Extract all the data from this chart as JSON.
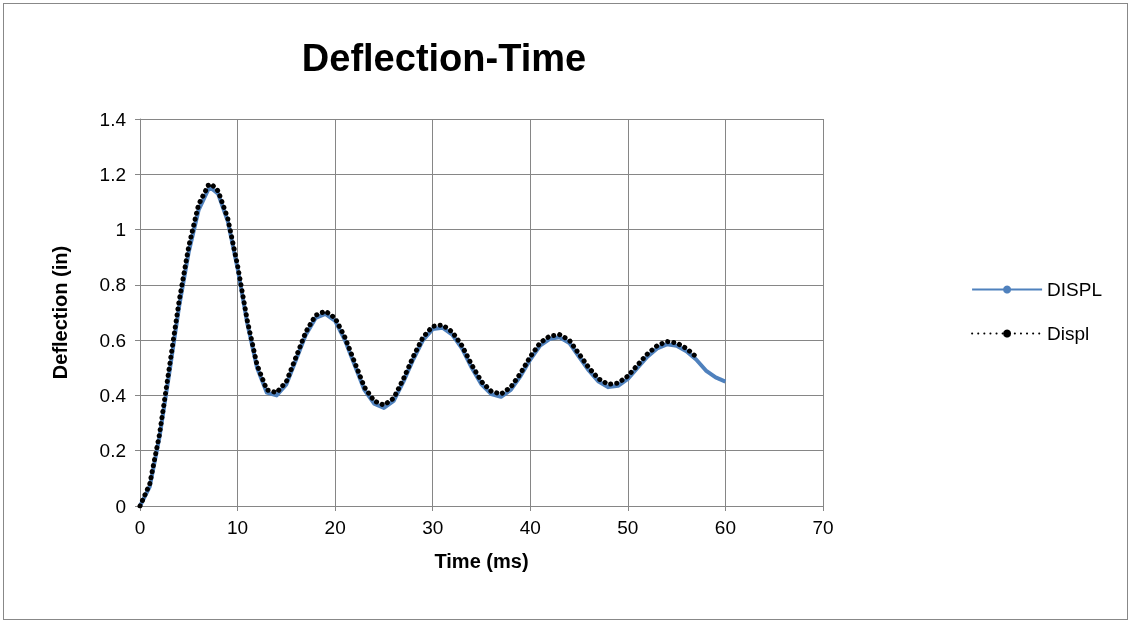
{
  "chart_data": {
    "type": "line",
    "title": "Deflection-Time",
    "xlabel": "Time (ms)",
    "ylabel": "Deflection (in)",
    "xlim": [
      0,
      70
    ],
    "xticks": [
      0,
      10,
      20,
      30,
      40,
      50,
      60,
      70
    ],
    "ylim": [
      0,
      1.4
    ],
    "yticks": [
      0,
      0.2,
      0.4,
      0.6,
      0.8,
      1,
      1.2,
      1.4
    ],
    "grid": true,
    "legend": "right",
    "marker": "none",
    "series": [
      {
        "name": "DISPL",
        "color": "#4f81bd",
        "line_style": "solid",
        "x": [
          0,
          1,
          2,
          3,
          4,
          5,
          6,
          7,
          7.3,
          8,
          9,
          10,
          11,
          12,
          13,
          14,
          15,
          16,
          17,
          18,
          19,
          20,
          21,
          22,
          23,
          24,
          25,
          26,
          27,
          28,
          29,
          30,
          31,
          32,
          33,
          34,
          35,
          36,
          37,
          38,
          39,
          40,
          41,
          42,
          43,
          44,
          45,
          46,
          47,
          48,
          49,
          50,
          51,
          52,
          53,
          54,
          55,
          56,
          57,
          58,
          59,
          60
        ],
        "values": [
          0,
          0.07,
          0.25,
          0.48,
          0.72,
          0.92,
          1.07,
          1.145,
          1.15,
          1.13,
          1.03,
          0.86,
          0.66,
          0.5,
          0.41,
          0.4,
          0.44,
          0.53,
          0.62,
          0.68,
          0.695,
          0.67,
          0.6,
          0.51,
          0.42,
          0.37,
          0.355,
          0.38,
          0.45,
          0.53,
          0.6,
          0.64,
          0.645,
          0.62,
          0.57,
          0.5,
          0.44,
          0.405,
          0.395,
          0.42,
          0.47,
          0.53,
          0.58,
          0.605,
          0.61,
          0.59,
          0.54,
          0.49,
          0.45,
          0.43,
          0.435,
          0.46,
          0.5,
          0.54,
          0.57,
          0.585,
          0.58,
          0.56,
          0.53,
          0.49,
          0.465,
          0.45
        ]
      },
      {
        "name": "Displ",
        "color": "#000000",
        "line_style": "dotted",
        "x": [
          0,
          1,
          2,
          3,
          4,
          5,
          6,
          7,
          7.3,
          8,
          9,
          10,
          11,
          12,
          13,
          14,
          15,
          16,
          17,
          18,
          19,
          20,
          21,
          22,
          23,
          24,
          25,
          26,
          27,
          28,
          29,
          30,
          31,
          32,
          33,
          34,
          35,
          36,
          37,
          38,
          39,
          40,
          41,
          42,
          43,
          44,
          45,
          46,
          47,
          48,
          49,
          50,
          51,
          52,
          53,
          54,
          55,
          56,
          57
        ],
        "values": [
          0,
          0.08,
          0.26,
          0.5,
          0.74,
          0.94,
          1.09,
          1.16,
          1.165,
          1.14,
          1.04,
          0.87,
          0.67,
          0.51,
          0.42,
          0.41,
          0.45,
          0.54,
          0.63,
          0.69,
          0.705,
          0.68,
          0.61,
          0.52,
          0.43,
          0.38,
          0.365,
          0.39,
          0.46,
          0.54,
          0.61,
          0.65,
          0.655,
          0.63,
          0.58,
          0.51,
          0.45,
          0.415,
          0.405,
          0.43,
          0.48,
          0.54,
          0.59,
          0.615,
          0.62,
          0.6,
          0.55,
          0.5,
          0.46,
          0.44,
          0.445,
          0.47,
          0.51,
          0.55,
          0.58,
          0.595,
          0.59,
          0.57,
          0.54
        ]
      }
    ]
  }
}
